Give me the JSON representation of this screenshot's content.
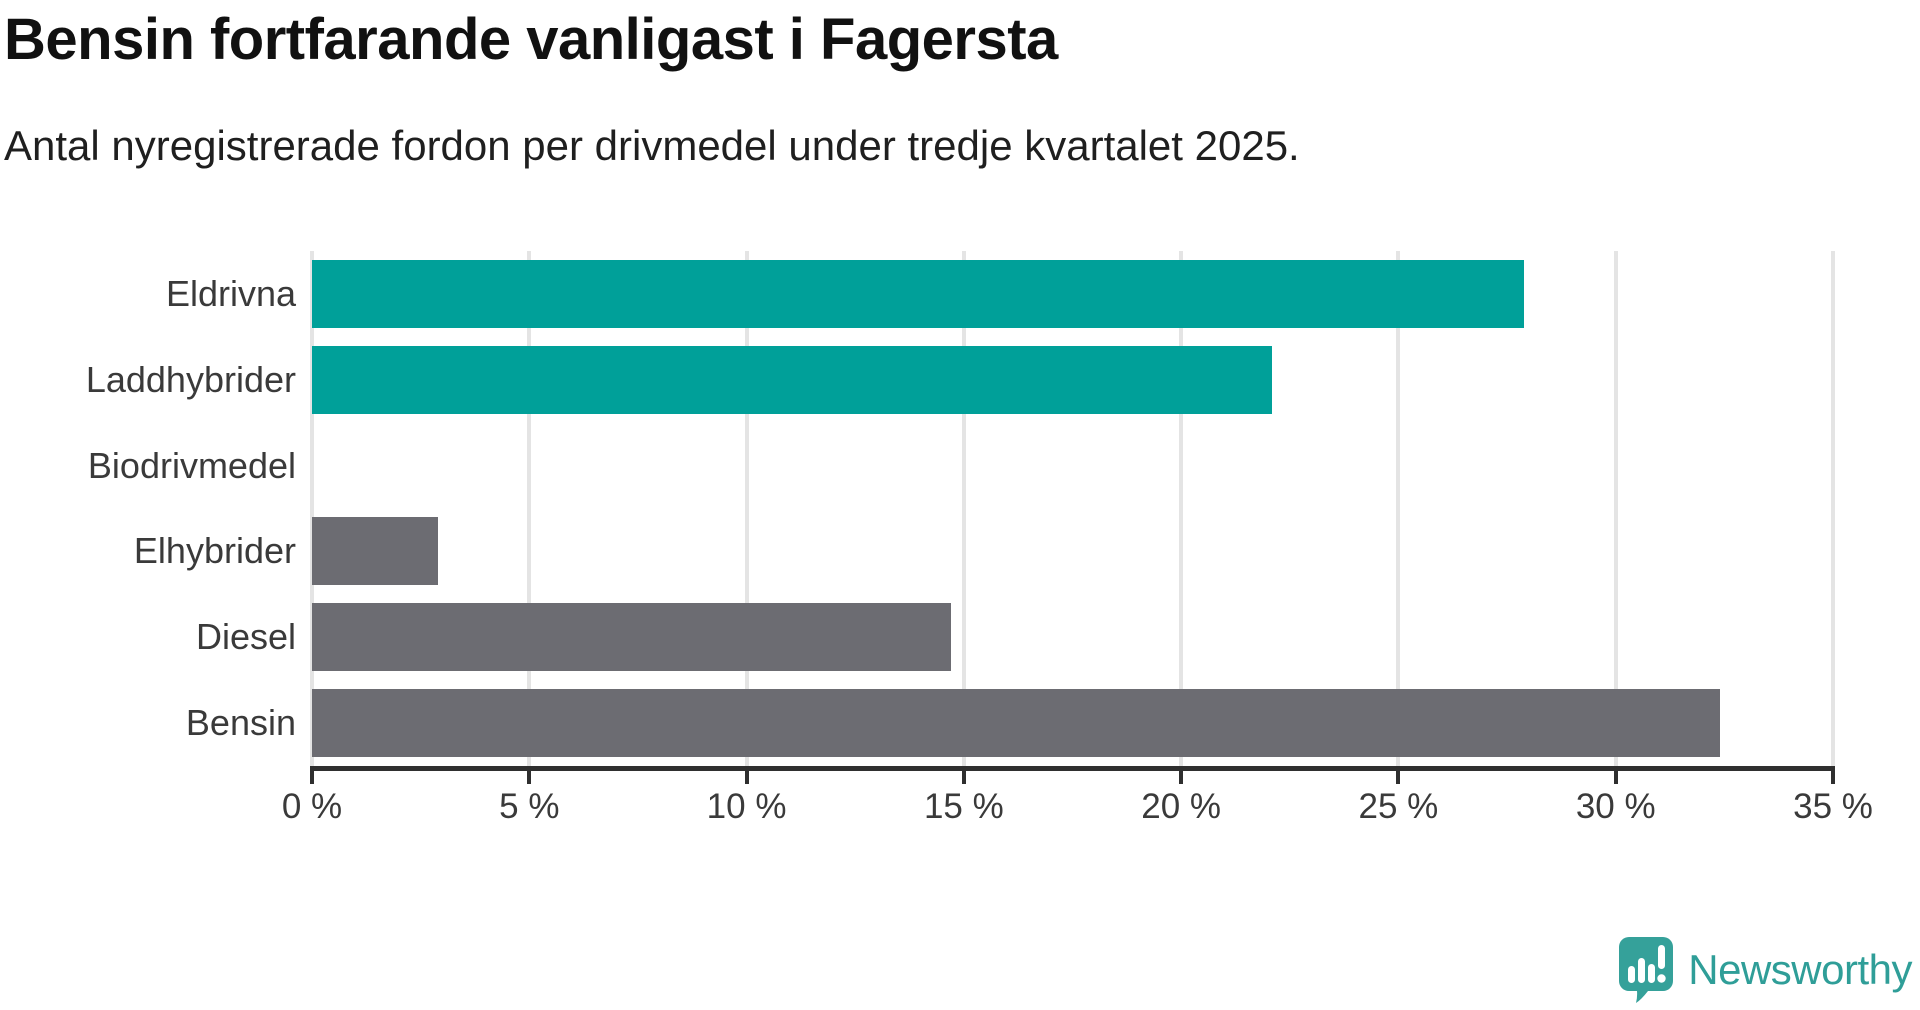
{
  "header": {
    "title": "Bensin fortfarande vanligast i Fagersta",
    "subtitle": "Antal nyregistrerade fordon per drivmedel under tredje kvartalet 2025."
  },
  "chart_data": {
    "type": "bar",
    "orientation": "horizontal",
    "title": "Bensin fortfarande vanligast i Fagersta",
    "subtitle": "Antal nyregistrerade fordon per drivmedel under tredje kvartalet 2025.",
    "categories": [
      "Eldrivna",
      "Laddhybrider",
      "Biodrivmedel",
      "Elhybrider",
      "Diesel",
      "Bensin"
    ],
    "values": [
      27.9,
      22.1,
      0,
      2.9,
      14.7,
      32.4
    ],
    "unit": "%",
    "xlim": [
      0,
      35
    ],
    "x_tick_values": [
      0,
      5,
      10,
      15,
      20,
      25,
      30,
      35
    ],
    "x_tick_labels": [
      "0 %",
      "5 %",
      "10 %",
      "15 %",
      "20 %",
      "25 %",
      "30 %",
      "35 %"
    ],
    "bar_colors": [
      "#00a099",
      "#00a099",
      "#6c6c72",
      "#6c6c72",
      "#6c6c72",
      "#6c6c72"
    ],
    "grid": "vertical",
    "legend": "none",
    "colors": {
      "highlight": "#00a099",
      "default": "#6c6c72",
      "gridline": "#e4e4e4",
      "axis": "#2f2f2f",
      "label_text": "#3a3a3a"
    }
  },
  "footer": {
    "brand": "Newsworthy",
    "brand_color": "#2f9e98",
    "logo_icon": "newsworthy-speech-bubble-chart-icon"
  }
}
